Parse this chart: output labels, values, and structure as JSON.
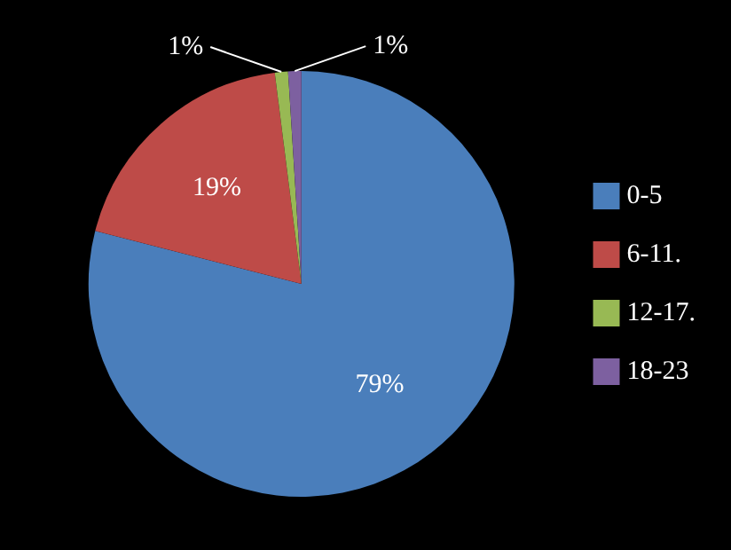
{
  "chart_data": {
    "type": "pie",
    "categories": [
      "0-5",
      "6-11.",
      "12-17.",
      "18-23"
    ],
    "values": [
      79,
      19,
      1,
      1
    ],
    "colors": [
      "#4a7ebb",
      "#be4b48",
      "#98b954",
      "#7d60a0"
    ],
    "value_labels": [
      "79%",
      "19%",
      "1%",
      "1%"
    ],
    "legend": "right"
  }
}
